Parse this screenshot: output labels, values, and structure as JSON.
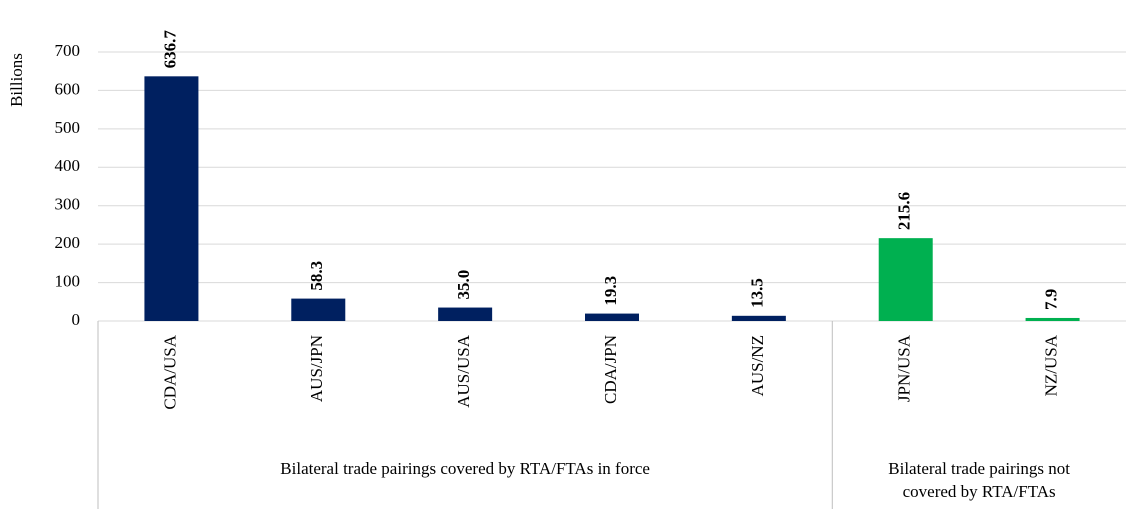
{
  "chart_data": {
    "type": "bar",
    "y_label": "Billions",
    "ylim": [
      0,
      700
    ],
    "yticks": [
      0,
      100,
      200,
      300,
      400,
      500,
      600,
      700
    ],
    "grid": true,
    "groups": [
      {
        "label_lines": [
          "Bilateral trade pairings covered by RTA/FTAs in force"
        ],
        "color": "#002060",
        "categories": [
          "CDA/USA",
          "AUS/JPN",
          "AUS/USA",
          "CDA/JPN",
          "AUS/NZ"
        ],
        "values": [
          636.7,
          58.3,
          35.0,
          19.3,
          13.5
        ],
        "value_labels": [
          "636.7",
          "58.3",
          "35.0",
          "19.3",
          "13.5"
        ]
      },
      {
        "label_lines": [
          "Bilateral trade pairings not",
          "covered by RTA/FTAs"
        ],
        "color": "#00b050",
        "categories": [
          "JPN/USA",
          "NZ/USA"
        ],
        "values": [
          215.6,
          7.9
        ],
        "value_labels": [
          "215.6",
          "7.9"
        ]
      }
    ]
  }
}
